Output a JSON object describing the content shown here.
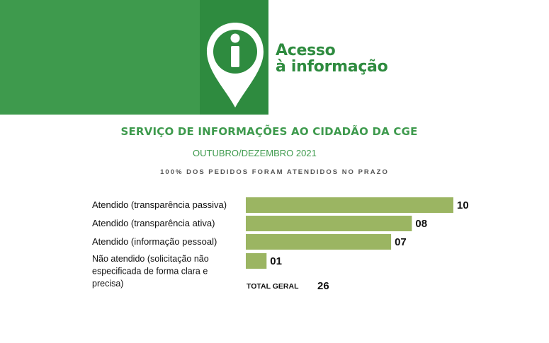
{
  "header": {
    "brand_line1": "Acesso",
    "brand_line2": "à informação"
  },
  "title": "SERVIÇO DE INFORMAÇÕES AO CIDADÃO DA CGE",
  "subtitle": "OUTUBRO/DEZEMBRO 2021",
  "note": "100% DOS PEDIDOS FORAM ATENDIDOS NO PRAZO",
  "colors": {
    "brand_green": "#3e9a4d",
    "bar": "#9bb562"
  },
  "chart_data": {
    "type": "bar",
    "orientation": "horizontal",
    "categories": [
      [
        "Atendido (transparência passiva)"
      ],
      [
        "Atendido (transparência ativa)"
      ],
      [
        "Atendido (informação pessoal)"
      ],
      [
        "Não atendido (solicitação não",
        "especificada de forma clara e",
        "precisa)"
      ]
    ],
    "values": [
      10,
      8,
      7,
      1
    ],
    "value_labels": [
      "10",
      "08",
      "07",
      "01"
    ],
    "total_label": "TOTAL GERAL",
    "total_value": "26"
  }
}
